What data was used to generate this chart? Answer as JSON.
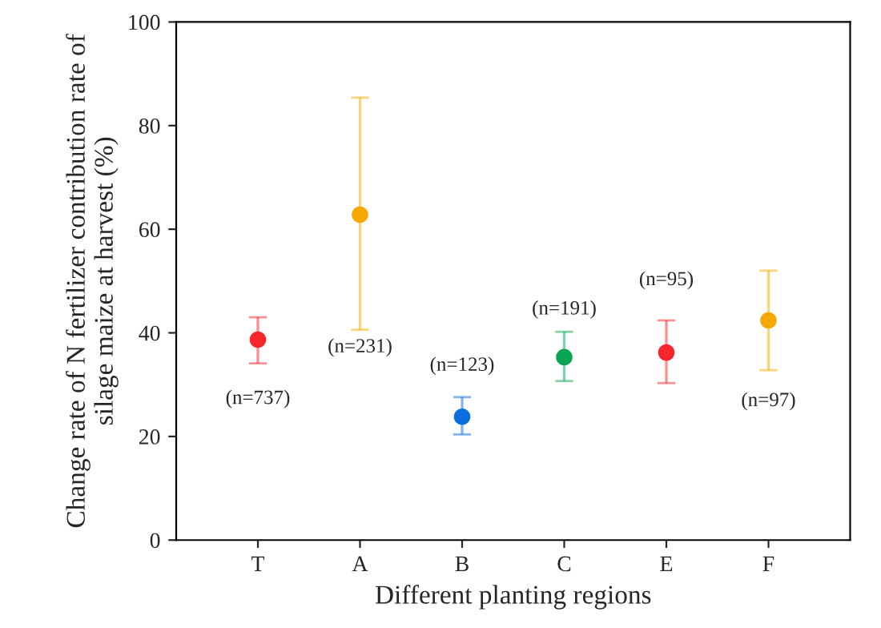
{
  "chart_data": {
    "type": "scatter",
    "xlabel": "Different planting regions",
    "ylabel": "Change rate of N fertilizer contribution rate of\nsilage maize at harvest (%)",
    "categories": [
      "T",
      "A",
      "B",
      "C",
      "E",
      "F"
    ],
    "values": [
      38.7,
      62.8,
      23.8,
      35.3,
      36.2,
      42.4
    ],
    "errors": [
      [
        34.1,
        43.0
      ],
      [
        40.6,
        85.4
      ],
      [
        20.4,
        27.6
      ],
      [
        30.7,
        40.2
      ],
      [
        30.3,
        42.4
      ],
      [
        32.8,
        52.0
      ]
    ],
    "colors": [
      "#f5262d",
      "#f7a800",
      "#0a6ee0",
      "#0aa552",
      "#f5262d",
      "#f7a800"
    ],
    "annotations": [
      "(n=737)",
      "(n=231)",
      "(n=123)",
      "(n=191)",
      "(n=95)",
      "(n=97)"
    ],
    "ylim": [
      0,
      100
    ],
    "yticks": [
      0,
      20,
      40,
      60,
      80,
      100
    ],
    "marker": "circle",
    "grid": false,
    "legend": false
  }
}
